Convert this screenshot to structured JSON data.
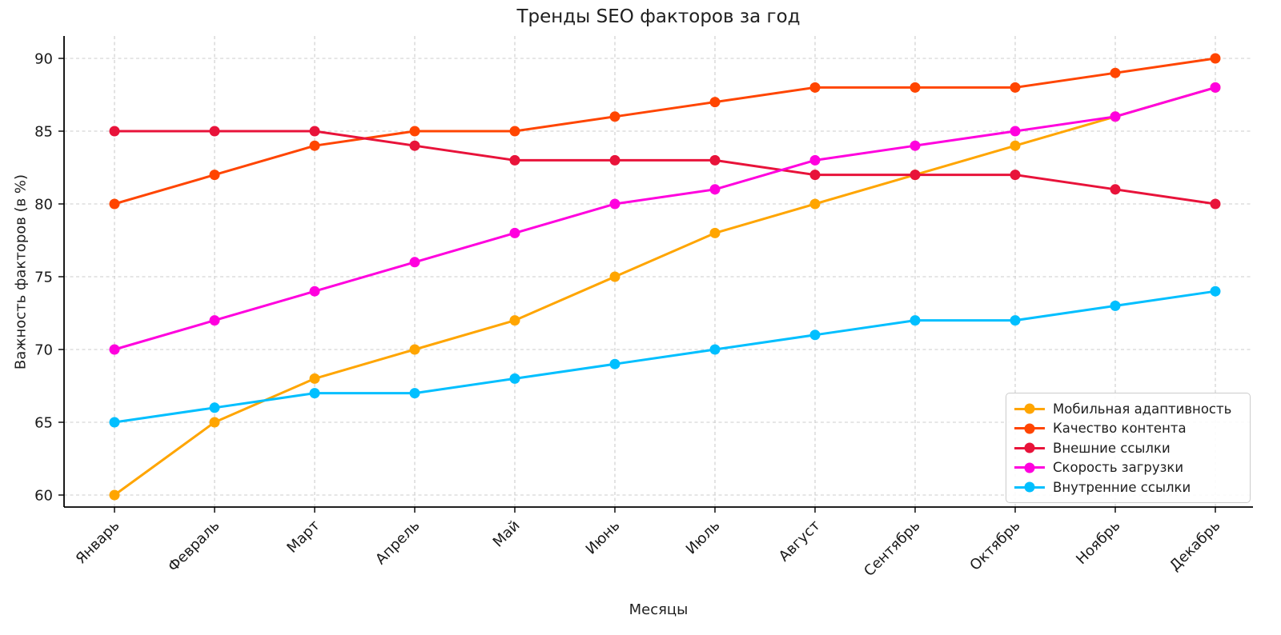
{
  "chart_data": {
    "type": "line",
    "title": "Тренды SEO факторов за год",
    "xlabel": "Месяцы",
    "ylabel": "Важность факторов (в %)",
    "categories": [
      "Январь",
      "Февраль",
      "Март",
      "Апрель",
      "Май",
      "Июнь",
      "Июль",
      "Август",
      "Сентябрь",
      "Октябрь",
      "Ноябрь",
      "Декабрь"
    ],
    "yticks": [
      60,
      65,
      70,
      75,
      80,
      85,
      90
    ],
    "ylim": [
      58.5,
      91.5
    ],
    "x_tick_rotation": 45,
    "grid": "dashed, both axes",
    "legend_position": "lower right",
    "marker": "circle",
    "series": [
      {
        "name": "Мобильная адаптивность",
        "color": "#FFA500",
        "values": [
          60,
          65,
          68,
          70,
          72,
          75,
          78,
          80,
          82,
          84,
          86,
          88
        ]
      },
      {
        "name": "Качество контента",
        "color": "#FF4500",
        "values": [
          80,
          82,
          84,
          85,
          85,
          86,
          87,
          88,
          88,
          88,
          89,
          90
        ]
      },
      {
        "name": "Внешние ссылки",
        "color": "#E8133A",
        "values": [
          85,
          85,
          85,
          84,
          83,
          83,
          83,
          82,
          82,
          82,
          81,
          80
        ]
      },
      {
        "name": "Скорость загрузки",
        "color": "#FF00DE",
        "values": [
          70,
          72,
          74,
          76,
          78,
          80,
          81,
          83,
          84,
          85,
          86,
          88
        ]
      },
      {
        "name": "Внутренние ссылки",
        "color": "#00BFFF",
        "values": [
          65,
          66,
          67,
          67,
          68,
          69,
          70,
          71,
          72,
          72,
          73,
          74
        ]
      }
    ],
    "style": {
      "grid_color": "#cccccc",
      "spine_color": "#000000",
      "tick_label_color": "#1a1a1a",
      "background": "#ffffff"
    }
  }
}
